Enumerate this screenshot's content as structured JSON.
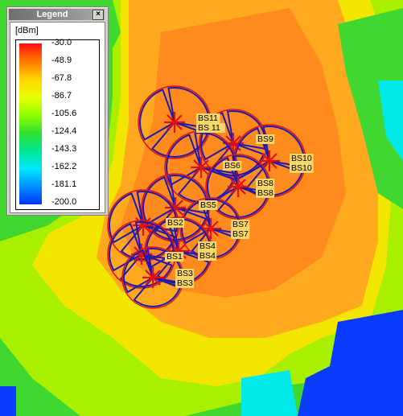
{
  "legend": {
    "title": "Legend",
    "close_glyph": "×",
    "unit": "[dBm]",
    "levels": [
      "-30.0",
      "-48.9",
      "-67.8",
      "-86.7",
      "-105.6",
      "-124.4",
      "-143.3",
      "-162.2",
      "-181.1",
      "-200.0"
    ],
    "gradient_colors": [
      "#ff1010",
      "#ff7a00",
      "#ffd400",
      "#e8ff00",
      "#90ff00",
      "#30e030",
      "#00e890",
      "#00e8ff",
      "#0090ff",
      "#0030ff"
    ]
  },
  "map": {
    "colors": {
      "strong": "#ff8a1e",
      "medium_orange": "#ffaa1e",
      "yellow": "#f2e600",
      "light_green": "#a8f000",
      "green": "#40d830",
      "cyan": "#00e8e8",
      "blue": "#0a3cff",
      "sector_blue": "#1a1ab8",
      "sector_red": "#e01010",
      "label_bg": "#f5d76a"
    }
  },
  "base_stations": [
    {
      "labels": [
        "BS11",
        "BS 11"
      ]
    },
    {
      "labels": [
        "BS9"
      ]
    },
    {
      "labels": [
        "BS10",
        "BS10"
      ]
    },
    {
      "labels": [
        "BS6"
      ]
    },
    {
      "labels": [
        "BS8",
        "BS8"
      ]
    },
    {
      "labels": [
        "BS5"
      ]
    },
    {
      "labels": [
        "BS2"
      ]
    },
    {
      "labels": [
        "BS7",
        "BS7"
      ]
    },
    {
      "labels": [
        "BS4",
        "BS4"
      ]
    },
    {
      "labels": [
        "BS1"
      ]
    },
    {
      "labels": [
        "BS3",
        "BS3"
      ]
    }
  ]
}
